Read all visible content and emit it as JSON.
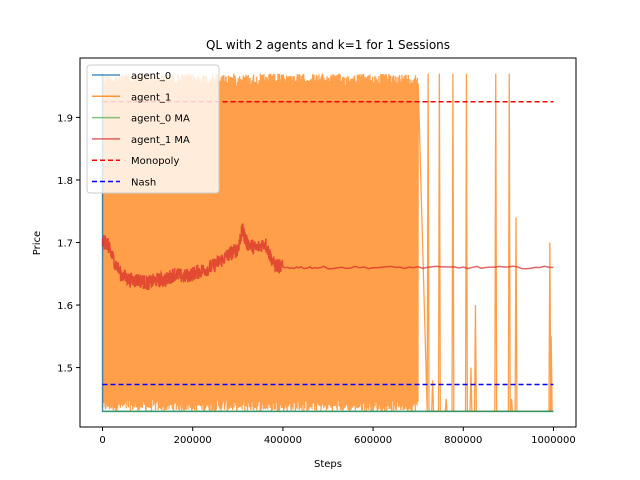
{
  "chart_data": {
    "type": "line",
    "title": "QL with 2 agents and k=1 for 1 Sessions",
    "xlabel": "Steps",
    "ylabel": "Price",
    "xlim": [
      -50000,
      1050000
    ],
    "ylim": [
      1.405,
      1.995
    ],
    "xticks": [
      0,
      200000,
      400000,
      600000,
      800000,
      1000000
    ],
    "xtick_labels": [
      "0",
      "200000",
      "400000",
      "600000",
      "800000",
      "1000000"
    ],
    "yticks": [
      1.5,
      1.6,
      1.7,
      1.8,
      1.9
    ],
    "ytick_labels": [
      "1.5",
      "1.6",
      "1.7",
      "1.8",
      "1.9"
    ],
    "grid": false,
    "legend_position": "top-left",
    "series": [
      {
        "name": "agent_0",
        "color": "#1f77b4",
        "style": "solid",
        "points": [
          [
            0,
            1.43
          ],
          [
            0,
            1.97
          ],
          [
            0,
            1.43
          ],
          [
            1000000,
            1.43
          ]
        ]
      },
      {
        "name": "agent_1",
        "color": "#ff7f0e",
        "style": "solid",
        "description_band": {
          "low": 1.43,
          "high": 1.97,
          "dense_until": 700000
        },
        "spikes": [
          [
            720000,
            1.97
          ],
          [
            730000,
            1.48
          ],
          [
            745000,
            1.97
          ],
          [
            760000,
            1.45
          ],
          [
            775000,
            1.97
          ],
          [
            790000,
            1.43
          ],
          [
            805000,
            1.97
          ],
          [
            815000,
            1.5
          ],
          [
            825000,
            1.6
          ],
          [
            850000,
            1.43
          ],
          [
            870000,
            1.97
          ],
          [
            880000,
            1.43
          ],
          [
            900000,
            1.97
          ],
          [
            905000,
            1.45
          ],
          [
            915000,
            1.74
          ],
          [
            945000,
            1.43
          ],
          [
            990000,
            1.7
          ],
          [
            993000,
            1.55
          ]
        ]
      },
      {
        "name": "agent_0 MA",
        "color": "#2ca02c",
        "style": "solid",
        "points": [
          [
            0,
            1.43
          ],
          [
            1000000,
            1.43
          ]
        ]
      },
      {
        "name": "agent_1 MA",
        "color": "#d62728",
        "style": "solid",
        "points": [
          [
            0,
            1.7
          ],
          [
            10000,
            1.7
          ],
          [
            20000,
            1.68
          ],
          [
            40000,
            1.65
          ],
          [
            60000,
            1.64
          ],
          [
            80000,
            1.64
          ],
          [
            100000,
            1.635
          ],
          [
            120000,
            1.64
          ],
          [
            140000,
            1.64
          ],
          [
            160000,
            1.65
          ],
          [
            180000,
            1.645
          ],
          [
            200000,
            1.65
          ],
          [
            220000,
            1.655
          ],
          [
            240000,
            1.66
          ],
          [
            260000,
            1.67
          ],
          [
            280000,
            1.68
          ],
          [
            300000,
            1.69
          ],
          [
            310000,
            1.72
          ],
          [
            320000,
            1.7
          ],
          [
            340000,
            1.69
          ],
          [
            360000,
            1.7
          ],
          [
            380000,
            1.665
          ],
          [
            400000,
            1.66
          ],
          [
            450000,
            1.66
          ],
          [
            500000,
            1.66
          ],
          [
            600000,
            1.66
          ],
          [
            700000,
            1.66
          ],
          [
            800000,
            1.66
          ],
          [
            900000,
            1.66
          ],
          [
            1000000,
            1.66
          ]
        ]
      },
      {
        "name": "Monopoly",
        "color": "#ff0000",
        "style": "dashed",
        "points": [
          [
            0,
            1.925
          ],
          [
            1000000,
            1.925
          ]
        ]
      },
      {
        "name": "Nash",
        "color": "#0000ff",
        "style": "dashed",
        "points": [
          [
            0,
            1.473
          ],
          [
            1000000,
            1.473
          ]
        ]
      }
    ]
  }
}
